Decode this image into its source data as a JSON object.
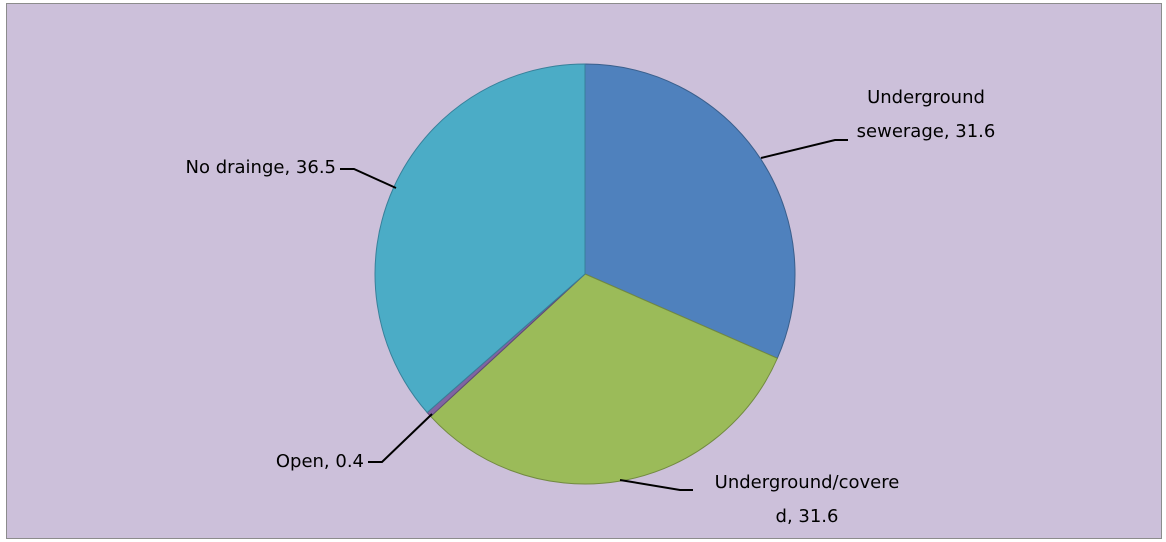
{
  "chart_data": {
    "type": "pie",
    "title": "",
    "legend": "none",
    "slices": [
      {
        "name": "Underground sewerage",
        "value": 31.6,
        "color": "#4f81bd",
        "stroke": "#3a5f8c",
        "label_lines": [
          "Underground",
          "sewerage, 31.6"
        ]
      },
      {
        "name": "Underground/covered",
        "value": 31.6,
        "color": "#9bbb59",
        "stroke": "#728a41",
        "label_lines": [
          "Underground/covere",
          "d, 31.6"
        ]
      },
      {
        "name": "Open",
        "value": 0.4,
        "color": "#8064a2",
        "stroke": "#5e4a78",
        "label_lines": [
          "Open, 0.4"
        ]
      },
      {
        "name": "No drainge",
        "value": 36.5,
        "color": "#4bacc6",
        "stroke": "#37809a",
        "label_lines": [
          "No drainge, 36.5"
        ]
      }
    ]
  }
}
